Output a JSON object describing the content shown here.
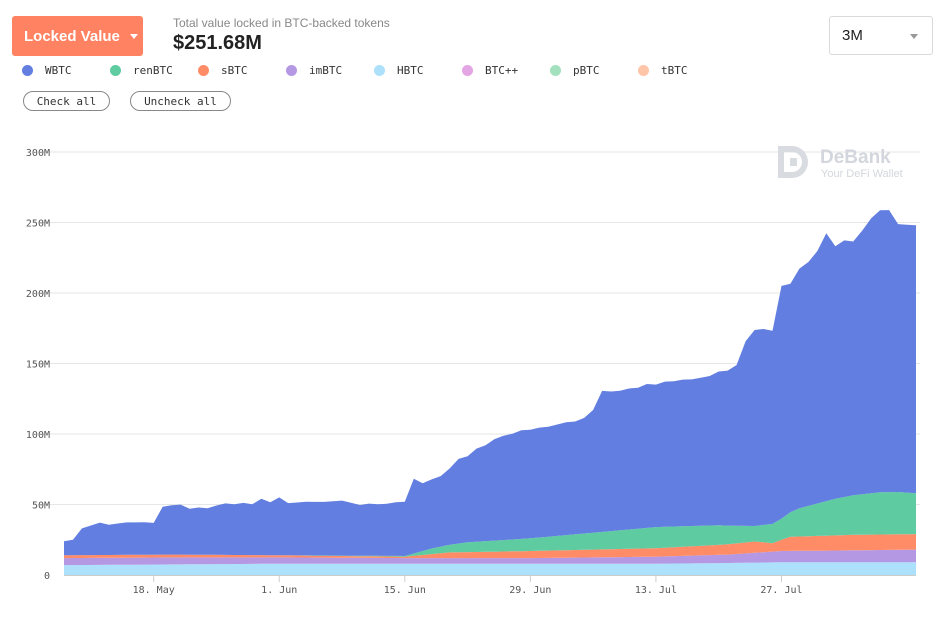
{
  "header": {
    "metric_label": "Locked Value",
    "subtitle": "Total value locked in BTC-backed tokens",
    "total_value": "$251.68M",
    "range": "3M"
  },
  "buttons": {
    "check_all": "Check all",
    "uncheck_all": "Uncheck all"
  },
  "watermark": {
    "name": "DeBank",
    "tagline": "Your DeFi Wallet"
  },
  "colors": {
    "grid": "#e6e6e6",
    "axis": "#cccccc"
  },
  "chart_data": {
    "type": "area",
    "stacked": true,
    "ylim": [
      0,
      300
    ],
    "yticks": [
      0,
      50,
      100,
      150,
      200,
      250,
      300
    ],
    "ytick_labels": [
      "0",
      "50M",
      "100M",
      "150M",
      "200M",
      "250M",
      "300M"
    ],
    "x_start": "2020-05-08",
    "x_end": "2020-08-11",
    "xticks": [
      "2020-05-18",
      "2020-06-01",
      "2020-06-15",
      "2020-06-29",
      "2020-07-13",
      "2020-07-27"
    ],
    "xtick_labels": [
      "18. May",
      "1. Jun",
      "15. Jun",
      "29. Jun",
      "13. Jul",
      "27. Jul"
    ],
    "legend_placement": "top-left",
    "series": [
      {
        "name": "HBTC",
        "color": "#ade0fb",
        "x": [
          "2020-05-08",
          "2020-05-20",
          "2020-06-01",
          "2020-06-15",
          "2020-06-29",
          "2020-07-13",
          "2020-07-21",
          "2020-07-27",
          "2020-08-11"
        ],
        "values": [
          7,
          7.5,
          8,
          8,
          8,
          8,
          8.5,
          9,
          9
        ]
      },
      {
        "name": "imBTC",
        "color": "#b598e3",
        "x": [
          "2020-05-08",
          "2020-05-20",
          "2020-06-01",
          "2020-06-15",
          "2020-06-29",
          "2020-07-13",
          "2020-07-21",
          "2020-07-27",
          "2020-08-11"
        ],
        "values": [
          5,
          5,
          4.5,
          4,
          4,
          5,
          6,
          8,
          9
        ]
      },
      {
        "name": "sBTC",
        "color": "#ff8c66",
        "x": [
          "2020-05-08",
          "2020-05-20",
          "2020-06-01",
          "2020-06-15",
          "2020-06-20",
          "2020-06-29",
          "2020-07-13",
          "2020-07-20",
          "2020-07-24",
          "2020-07-26",
          "2020-07-28",
          "2020-08-04",
          "2020-08-11"
        ],
        "values": [
          2,
          2,
          1.5,
          1,
          4,
          5,
          6,
          7,
          8,
          6,
          10,
          11,
          11
        ]
      },
      {
        "name": "renBTC",
        "color": "#5ecba1",
        "x": [
          "2020-05-08",
          "2020-06-01",
          "2020-06-15",
          "2020-06-18",
          "2020-06-22",
          "2020-06-29",
          "2020-07-06",
          "2020-07-13",
          "2020-07-20",
          "2020-07-24",
          "2020-07-27",
          "2020-07-29",
          "2020-08-02",
          "2020-08-04",
          "2020-08-07",
          "2020-08-09",
          "2020-08-11"
        ],
        "values": [
          0,
          0,
          0.5,
          4,
          7,
          9,
          12,
          15,
          14,
          11,
          15,
          20,
          26,
          28,
          30,
          30,
          29
        ]
      },
      {
        "name": "WBTC",
        "color": "#627ee0",
        "x": [
          "2020-05-08",
          "2020-05-09",
          "2020-05-10",
          "2020-05-12",
          "2020-05-13",
          "2020-05-15",
          "2020-05-16",
          "2020-05-17",
          "2020-05-18",
          "2020-05-19",
          "2020-05-20",
          "2020-05-21",
          "2020-05-22",
          "2020-05-23",
          "2020-05-24",
          "2020-05-25",
          "2020-05-26",
          "2020-05-27",
          "2020-05-28",
          "2020-05-29",
          "2020-05-30",
          "2020-05-31",
          "2020-06-01",
          "2020-06-02",
          "2020-06-04",
          "2020-06-06",
          "2020-06-08",
          "2020-06-10",
          "2020-06-11",
          "2020-06-12",
          "2020-06-13",
          "2020-06-14",
          "2020-06-15",
          "2020-06-16",
          "2020-06-17",
          "2020-06-18",
          "2020-06-19",
          "2020-06-20",
          "2020-06-21",
          "2020-06-22",
          "2020-06-23",
          "2020-06-24",
          "2020-06-25",
          "2020-06-26",
          "2020-06-27",
          "2020-06-28",
          "2020-06-29",
          "2020-06-30",
          "2020-07-01",
          "2020-07-02",
          "2020-07-03",
          "2020-07-04",
          "2020-07-05",
          "2020-07-06",
          "2020-07-07",
          "2020-07-08",
          "2020-07-09",
          "2020-07-10",
          "2020-07-11",
          "2020-07-12",
          "2020-07-13",
          "2020-07-14",
          "2020-07-15",
          "2020-07-16",
          "2020-07-17",
          "2020-07-18",
          "2020-07-19",
          "2020-07-20",
          "2020-07-21",
          "2020-07-22",
          "2020-07-23",
          "2020-07-24",
          "2020-07-25",
          "2020-07-26",
          "2020-07-27",
          "2020-07-28",
          "2020-07-29",
          "2020-07-30",
          "2020-07-31",
          "2020-08-01",
          "2020-08-02",
          "2020-08-03",
          "2020-08-04",
          "2020-08-05",
          "2020-08-06",
          "2020-08-07",
          "2020-08-08",
          "2020-08-09",
          "2020-08-10",
          "2020-08-11"
        ],
        "values": [
          10,
          11,
          19,
          23,
          21.5,
          23,
          23,
          23,
          22.5,
          34,
          35,
          35.5,
          32.5,
          33.5,
          33,
          35,
          36.5,
          36,
          37,
          36,
          40,
          37.5,
          41,
          37,
          38,
          38,
          39,
          36,
          37,
          36.5,
          37,
          38,
          38.5,
          53,
          48,
          49,
          50,
          54,
          60,
          61,
          66,
          68,
          72,
          74,
          75,
          77,
          77,
          78,
          78,
          79,
          80,
          80,
          82,
          87,
          100,
          99,
          99,
          100,
          100,
          102,
          101,
          103,
          103,
          104,
          104,
          105,
          106,
          109,
          110,
          114,
          131,
          139,
          139,
          137,
          165,
          162,
          170,
          173,
          179,
          190,
          179,
          182,
          180,
          187,
          195,
          200,
          200,
          190,
          190,
          190
        ]
      },
      {
        "name": "BTC++",
        "color": "#e3a5e3",
        "x": [
          "2020-05-08",
          "2020-08-11"
        ],
        "values": [
          0,
          0
        ]
      },
      {
        "name": "pBTC",
        "color": "#a3e0bd",
        "x": [
          "2020-05-08",
          "2020-08-11"
        ],
        "values": [
          0,
          0
        ]
      },
      {
        "name": "tBTC",
        "color": "#ffc5a8",
        "x": [
          "2020-05-08",
          "2020-08-11"
        ],
        "values": [
          0,
          0
        ]
      }
    ],
    "legend": [
      {
        "name": "WBTC",
        "color": "#627ee0"
      },
      {
        "name": "renBTC",
        "color": "#5ecba1"
      },
      {
        "name": "sBTC",
        "color": "#ff8c66"
      },
      {
        "name": "imBTC",
        "color": "#b598e3"
      },
      {
        "name": "HBTC",
        "color": "#ade0fb"
      },
      {
        "name": "BTC++",
        "color": "#e3a5e3"
      },
      {
        "name": "pBTC",
        "color": "#a3e0bd"
      },
      {
        "name": "tBTC",
        "color": "#ffc5a8"
      }
    ]
  }
}
